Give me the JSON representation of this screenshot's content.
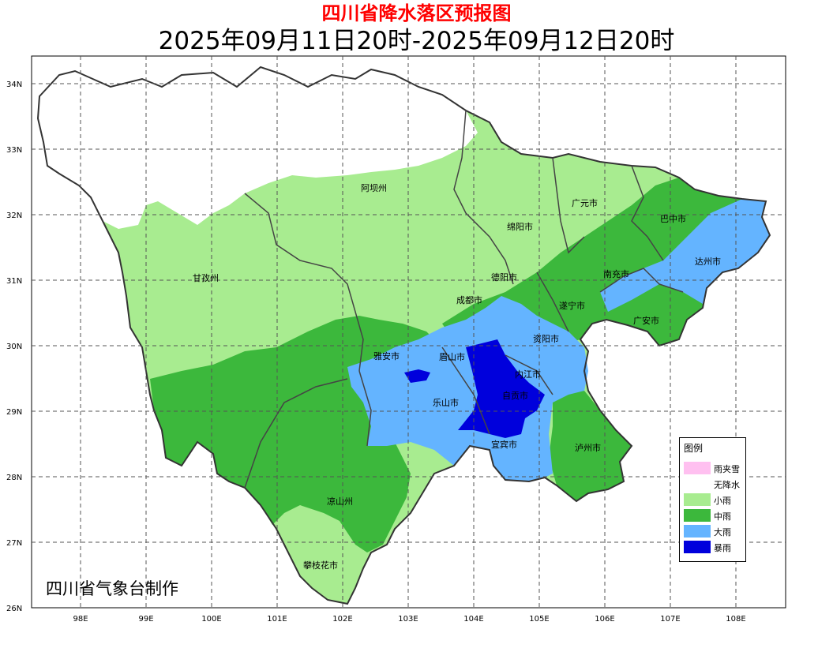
{
  "title": "四川省降水落区预报图",
  "subtitle": "2025年09月11日20时-2025年09月12日20时",
  "credit": "四川省气象台制作",
  "axes": {
    "lat_ticks": [
      "34N",
      "33N",
      "32N",
      "31N",
      "30N",
      "29N",
      "28N",
      "27N",
      "26N"
    ],
    "lon_ticks": [
      "98E",
      "99E",
      "100E",
      "101E",
      "102E",
      "103E",
      "104E",
      "105E",
      "106E",
      "107E",
      "108E"
    ]
  },
  "regions": [
    {
      "name": "阿坝州"
    },
    {
      "name": "广元市"
    },
    {
      "name": "绵阳市"
    },
    {
      "name": "巴中市"
    },
    {
      "name": "达州市"
    },
    {
      "name": "德阳市"
    },
    {
      "name": "南充市"
    },
    {
      "name": "甘孜州"
    },
    {
      "name": "成都市"
    },
    {
      "name": "遂宁市"
    },
    {
      "name": "广安市"
    },
    {
      "name": "资阳市"
    },
    {
      "name": "雅安市"
    },
    {
      "name": "眉山市"
    },
    {
      "name": "内江市"
    },
    {
      "name": "乐山市"
    },
    {
      "name": "自贡市"
    },
    {
      "name": "宜宾市"
    },
    {
      "name": "泸州市"
    },
    {
      "name": "凉山州"
    },
    {
      "name": "攀枝花市"
    }
  ],
  "legend": {
    "title": "图例",
    "items": [
      {
        "label": "雨夹雪",
        "color": "#ffc0f0"
      },
      {
        "label": "无降水",
        "color": "#ffffff"
      },
      {
        "label": "小雨",
        "color": "#a8ec90"
      },
      {
        "label": "中雨",
        "color": "#3cb83c"
      },
      {
        "label": "大雨",
        "color": "#64b4ff"
      },
      {
        "label": "暴雨",
        "color": "#0000dc"
      }
    ]
  }
}
